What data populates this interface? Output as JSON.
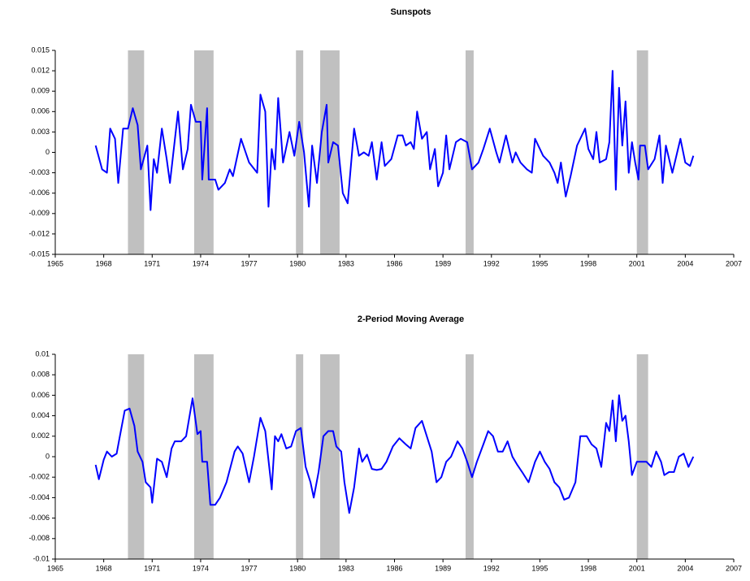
{
  "chart_data": [
    {
      "type": "line",
      "title": "Sunspots",
      "xlim": [
        1965,
        2007
      ],
      "xticks": [
        1965,
        1968,
        1971,
        1974,
        1977,
        1980,
        1983,
        1986,
        1989,
        1992,
        1995,
        1998,
        2001,
        2004,
        2007
      ],
      "ylim": [
        -0.015,
        0.015
      ],
      "yticks": [
        0.015,
        0.012,
        0.009,
        0.006,
        0.003,
        0,
        -0.003,
        -0.006,
        -0.009,
        -0.012,
        -0.015
      ],
      "shade_color": "#c0c0c0",
      "shaded_periods": [
        {
          "start": 1969.5,
          "end": 1970.5
        },
        {
          "start": 1973.6,
          "end": 1974.8
        },
        {
          "start": 1979.9,
          "end": 1980.35
        },
        {
          "start": 1981.4,
          "end": 1982.6
        },
        {
          "start": 1990.4,
          "end": 1990.9
        },
        {
          "start": 2001.0,
          "end": 2001.7
        }
      ],
      "color": "#0000ff",
      "x": [
        1967.5,
        1967.9,
        1968.2,
        1968.4,
        1968.7,
        1968.9,
        1969.2,
        1969.5,
        1969.8,
        1970.1,
        1970.3,
        1970.7,
        1970.9,
        1971.1,
        1971.3,
        1971.6,
        1971.9,
        1972.1,
        1972.6,
        1972.9,
        1973.2,
        1973.4,
        1973.7,
        1974.0,
        1974.1,
        1974.4,
        1974.5,
        1974.9,
        1975.1,
        1975.5,
        1975.8,
        1976.0,
        1976.5,
        1977.0,
        1977.5,
        1977.7,
        1978.0,
        1978.2,
        1978.4,
        1978.6,
        1978.8,
        1979.1,
        1979.5,
        1979.8,
        1980.1,
        1980.4,
        1980.7,
        1980.9,
        1981.2,
        1981.5,
        1981.8,
        1981.9,
        1982.2,
        1982.5,
        1982.8,
        1983.1,
        1983.5,
        1983.8,
        1984.1,
        1984.4,
        1984.6,
        1984.9,
        1985.2,
        1985.4,
        1985.8,
        1986.2,
        1986.5,
        1986.7,
        1987.0,
        1987.2,
        1987.4,
        1987.7,
        1988.0,
        1988.2,
        1988.5,
        1988.7,
        1989.0,
        1989.2,
        1989.4,
        1989.8,
        1990.1,
        1990.5,
        1990.8,
        1991.2,
        1991.5,
        1991.9,
        1992.3,
        1992.5,
        1992.9,
        1993.3,
        1993.5,
        1993.8,
        1994.2,
        1994.5,
        1994.7,
        1995.2,
        1995.6,
        1995.9,
        1996.1,
        1996.3,
        1996.6,
        1996.9,
        1997.3,
        1997.8,
        1998.0,
        1998.3,
        1998.5,
        1998.7,
        1999.1,
        1999.3,
        1999.5,
        1999.7,
        1999.9,
        2000.1,
        2000.3,
        2000.5,
        2000.7,
        2000.9,
        2001.1,
        2001.2,
        2001.5,
        2001.7,
        2002.1,
        2002.4,
        2002.6,
        2002.8,
        2003.2,
        2003.7,
        2004.0,
        2004.3,
        2004.5
      ],
      "values": [
        0.001,
        -0.0025,
        -0.003,
        0.0035,
        0.002,
        -0.0045,
        0.0035,
        0.0035,
        0.0065,
        0.004,
        -0.0025,
        0.001,
        -0.0085,
        -0.001,
        -0.003,
        0.0035,
        -0.001,
        -0.0045,
        0.006,
        -0.0025,
        0.0005,
        0.007,
        0.0045,
        0.0045,
        -0.004,
        0.0065,
        -0.004,
        -0.004,
        -0.0055,
        -0.0045,
        -0.0025,
        -0.0035,
        0.002,
        -0.0015,
        -0.003,
        0.0085,
        0.006,
        -0.008,
        0.0005,
        -0.0025,
        0.008,
        -0.0015,
        0.003,
        -0.0005,
        0.0045,
        0,
        -0.008,
        0.001,
        -0.0045,
        0.003,
        0.007,
        -0.0015,
        0.0015,
        0.001,
        -0.006,
        -0.0075,
        0.0035,
        -0.0005,
        0,
        -0.0005,
        0.0015,
        -0.004,
        0.0015,
        -0.002,
        -0.001,
        0.0025,
        0.0025,
        0.001,
        0.0015,
        0.0005,
        0.006,
        0.002,
        0.003,
        -0.0025,
        0.0005,
        -0.005,
        -0.003,
        0.0025,
        -0.0025,
        0.0015,
        0.002,
        0.0015,
        -0.0025,
        -0.0015,
        0.0005,
        0.0035,
        0,
        -0.0015,
        0.0025,
        -0.0015,
        0,
        -0.0015,
        -0.0025,
        -0.003,
        0.002,
        -0.0005,
        -0.0015,
        -0.003,
        -0.0045,
        -0.0015,
        -0.0065,
        -0.0035,
        0.001,
        0.0035,
        0.0005,
        -0.001,
        0.003,
        -0.0015,
        -0.001,
        0.0015,
        0.012,
        -0.0055,
        0.0095,
        0.001,
        0.0075,
        -0.003,
        0.0015,
        -0.0015,
        -0.004,
        0.001,
        0.001,
        -0.0025,
        -0.001,
        0.0025,
        -0.0045,
        0.001,
        -0.003,
        0.002,
        -0.0015,
        -0.002,
        -0.0005
      ]
    },
    {
      "type": "line",
      "title": "2-Period Moving Average",
      "xlim": [
        1965,
        2007
      ],
      "xticks": [
        1965,
        1968,
        1971,
        1974,
        1977,
        1980,
        1983,
        1986,
        1989,
        1992,
        1995,
        1998,
        2001,
        2004,
        2007
      ],
      "ylim": [
        -0.01,
        0.01
      ],
      "yticks": [
        0.01,
        0.008,
        0.006,
        0.004,
        0.002,
        0,
        -0.002,
        -0.004,
        -0.006,
        -0.008,
        -0.01
      ],
      "shade_color": "#c0c0c0",
      "shaded_periods": [
        {
          "start": 1969.5,
          "end": 1970.5
        },
        {
          "start": 1973.6,
          "end": 1974.8
        },
        {
          "start": 1979.9,
          "end": 1980.35
        },
        {
          "start": 1981.4,
          "end": 1982.6
        },
        {
          "start": 1990.4,
          "end": 1990.9
        },
        {
          "start": 2001.0,
          "end": 2001.7
        }
      ],
      "color": "#0000ff",
      "x": [
        1967.5,
        1967.7,
        1968.0,
        1968.2,
        1968.5,
        1968.8,
        1969.0,
        1969.3,
        1969.6,
        1969.9,
        1970.1,
        1970.4,
        1970.6,
        1970.9,
        1971.0,
        1971.3,
        1971.6,
        1971.9,
        1972.2,
        1972.4,
        1972.8,
        1973.1,
        1973.5,
        1973.8,
        1974.0,
        1974.1,
        1974.4,
        1974.6,
        1974.9,
        1975.2,
        1975.6,
        1976.1,
        1976.3,
        1976.6,
        1977.0,
        1977.3,
        1977.7,
        1978.0,
        1978.4,
        1978.6,
        1978.8,
        1979.0,
        1979.3,
        1979.6,
        1979.9,
        1980.2,
        1980.5,
        1980.8,
        1981.0,
        1981.3,
        1981.6,
        1981.9,
        1982.2,
        1982.4,
        1982.7,
        1982.9,
        1983.2,
        1983.5,
        1983.8,
        1984.0,
        1984.3,
        1984.6,
        1984.9,
        1985.2,
        1985.5,
        1985.9,
        1986.3,
        1986.7,
        1987.0,
        1987.3,
        1987.7,
        1988.0,
        1988.3,
        1988.6,
        1988.9,
        1989.2,
        1989.5,
        1989.9,
        1990.2,
        1990.5,
        1990.8,
        1991.1,
        1991.5,
        1991.8,
        1992.1,
        1992.4,
        1992.7,
        1993.0,
        1993.3,
        1993.6,
        1993.9,
        1994.3,
        1994.7,
        1995.0,
        1995.3,
        1995.6,
        1995.9,
        1996.2,
        1996.5,
        1996.8,
        1997.2,
        1997.5,
        1997.9,
        1998.2,
        1998.5,
        1998.8,
        1999.1,
        1999.3,
        1999.5,
        1999.7,
        1999.9,
        2000.1,
        2000.3,
        2000.5,
        2000.7,
        2001.0,
        2001.3,
        2001.6,
        2001.9,
        2002.2,
        2002.5,
        2002.7,
        2003.0,
        2003.3,
        2003.6,
        2003.9,
        2004.2,
        2004.5
      ],
      "values": [
        -0.0008,
        -0.0022,
        -0.0003,
        0.0005,
        0,
        0.0003,
        0.002,
        0.0045,
        0.0047,
        0.003,
        0.0005,
        -0.0005,
        -0.0025,
        -0.003,
        -0.0045,
        -0.0002,
        -0.0005,
        -0.002,
        0.0008,
        0.0015,
        0.0015,
        0.002,
        0.0057,
        0.0022,
        0.0025,
        -0.0005,
        -0.0005,
        -0.0047,
        -0.0047,
        -0.004,
        -0.0025,
        0.0005,
        0.001,
        0.0003,
        -0.0025,
        0,
        0.0038,
        0.0025,
        -0.0032,
        0.002,
        0.0015,
        0.0022,
        0.0008,
        0.001,
        0.0025,
        0.0028,
        -0.001,
        -0.0025,
        -0.004,
        -0.0015,
        0.002,
        0.0025,
        0.0025,
        0.001,
        0.0005,
        -0.0025,
        -0.0055,
        -0.003,
        0.0008,
        -0.0005,
        0.0002,
        -0.0012,
        -0.0013,
        -0.0012,
        -0.0005,
        0.001,
        0.0018,
        0.0012,
        0.0008,
        0.0028,
        0.0035,
        0.002,
        0.0005,
        -0.0025,
        -0.002,
        -0.0005,
        0,
        0.0015,
        0.0008,
        -0.0005,
        -0.002,
        -0.0005,
        0.0012,
        0.0025,
        0.002,
        0.0005,
        0.0005,
        0.0015,
        0,
        -0.0008,
        -0.0015,
        -0.0025,
        -0.0005,
        0.0005,
        -0.0005,
        -0.0012,
        -0.0025,
        -0.003,
        -0.0042,
        -0.004,
        -0.0025,
        0.002,
        0.002,
        0.0012,
        0.0008,
        -0.001,
        0.0033,
        0.0025,
        0.0055,
        0.0015,
        0.006,
        0.0035,
        0.004,
        0.0015,
        -0.0018,
        -0.0005,
        -0.0005,
        -0.0005,
        -0.001,
        0.0005,
        -0.0005,
        -0.0018,
        -0.0015,
        -0.0015,
        0,
        0.0003,
        -0.001,
        0
      ]
    }
  ]
}
